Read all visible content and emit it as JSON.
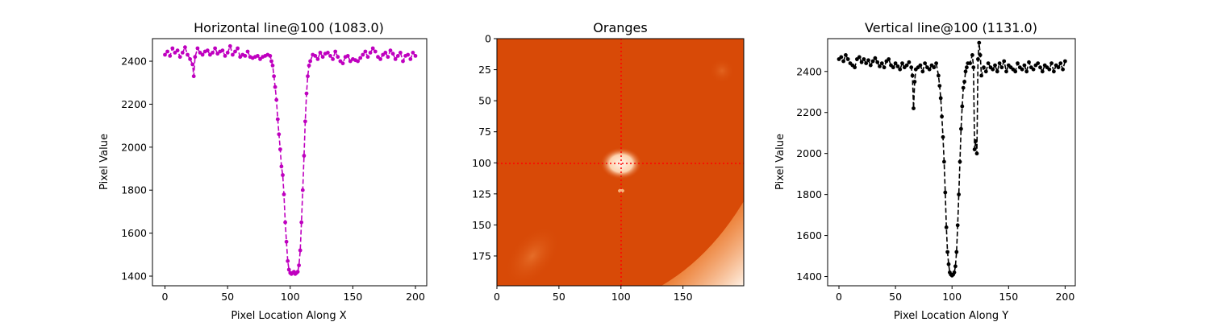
{
  "chart_data": [
    {
      "type": "line",
      "title": "Horizontal line@100 (1083.0)",
      "xlabel": "Pixel Location Along X",
      "ylabel": "Pixel Value",
      "xlim": [
        -10,
        209
      ],
      "ylim": [
        1355,
        2505
      ],
      "xticks": [
        0,
        50,
        100,
        150,
        200
      ],
      "yticks": [
        1400,
        1600,
        1800,
        2000,
        2200,
        2400
      ],
      "line_color": "#bf00bf",
      "line_style": "dashed",
      "marker": "dot",
      "grid": false,
      "series": [
        {
          "x": [
            0,
            2,
            4,
            6,
            8,
            10,
            12,
            14,
            16,
            18,
            20,
            22,
            23,
            24,
            26,
            28,
            30,
            32,
            34,
            36,
            38,
            40,
            42,
            44,
            46,
            48,
            50,
            52,
            54,
            56,
            58,
            60,
            62,
            64,
            66,
            68,
            70,
            72,
            74,
            76,
            78,
            80,
            82,
            84,
            85,
            86,
            87,
            88,
            89,
            90,
            91,
            92,
            93,
            94,
            95,
            96,
            97,
            98,
            99,
            100,
            101,
            102,
            103,
            104,
            105,
            106,
            107,
            108,
            109,
            110,
            111,
            112,
            113,
            114,
            115,
            116,
            118,
            120,
            122,
            124,
            126,
            128,
            130,
            132,
            134,
            136,
            138,
            140,
            142,
            144,
            146,
            148,
            150,
            152,
            154,
            156,
            158,
            160,
            162,
            164,
            166,
            168,
            170,
            172,
            174,
            176,
            178,
            180,
            182,
            184,
            186,
            188,
            190,
            192,
            194,
            196,
            198,
            200
          ],
          "y": [
            2430,
            2445,
            2425,
            2460,
            2440,
            2450,
            2420,
            2440,
            2465,
            2430,
            2410,
            2385,
            2330,
            2420,
            2460,
            2440,
            2430,
            2445,
            2450,
            2430,
            2440,
            2460,
            2435,
            2445,
            2450,
            2425,
            2440,
            2470,
            2430,
            2445,
            2460,
            2420,
            2430,
            2425,
            2445,
            2420,
            2415,
            2420,
            2425,
            2410,
            2420,
            2425,
            2430,
            2425,
            2400,
            2380,
            2330,
            2280,
            2220,
            2130,
            2060,
            1990,
            1910,
            1870,
            1780,
            1650,
            1560,
            1470,
            1430,
            1415,
            1410,
            1415,
            1420,
            1410,
            1415,
            1420,
            1450,
            1520,
            1650,
            1800,
            1960,
            2120,
            2250,
            2330,
            2380,
            2400,
            2430,
            2425,
            2410,
            2440,
            2420,
            2435,
            2440,
            2425,
            2410,
            2445,
            2420,
            2400,
            2390,
            2420,
            2425,
            2400,
            2410,
            2405,
            2400,
            2415,
            2430,
            2445,
            2420,
            2440,
            2460,
            2445,
            2420,
            2410,
            2430,
            2440,
            2420,
            2450,
            2435,
            2410,
            2425,
            2440,
            2400,
            2425,
            2430,
            2410,
            2440,
            2425
          ]
        }
      ]
    },
    {
      "type": "heatmap",
      "title": "Oranges",
      "colormap": "Oranges",
      "xlim": [
        0,
        199
      ],
      "ylim": [
        199,
        0
      ],
      "xticks": [
        0,
        50,
        100,
        150
      ],
      "yticks": [
        0,
        25,
        50,
        75,
        100,
        125,
        150,
        175
      ],
      "crosshair": {
        "x": 100,
        "y": 100,
        "color": "#ff0000",
        "style": "dotted"
      },
      "background_color": "#d84a07",
      "highlight_color": "#fff4ea"
    },
    {
      "type": "line",
      "title": "Vertical line@100 (1131.0)",
      "xlabel": "Pixel Location Along Y",
      "ylabel": "Pixel Value",
      "xlim": [
        -10,
        209
      ],
      "ylim": [
        1355,
        2560
      ],
      "xticks": [
        0,
        50,
        100,
        150,
        200
      ],
      "yticks": [
        1400,
        1600,
        1800,
        2000,
        2200,
        2400
      ],
      "line_color": "#000000",
      "line_style": "dashed",
      "marker": "dot",
      "grid": false,
      "series": [
        {
          "x": [
            0,
            2,
            4,
            6,
            8,
            10,
            12,
            14,
            16,
            18,
            20,
            22,
            24,
            26,
            28,
            30,
            32,
            34,
            36,
            38,
            40,
            42,
            44,
            46,
            48,
            50,
            52,
            54,
            56,
            58,
            60,
            62,
            64,
            65,
            66,
            67,
            68,
            70,
            72,
            74,
            76,
            78,
            80,
            82,
            84,
            86,
            88,
            89,
            90,
            91,
            92,
            93,
            94,
            95,
            96,
            97,
            98,
            99,
            100,
            101,
            102,
            103,
            104,
            105,
            106,
            107,
            108,
            109,
            110,
            111,
            112,
            113,
            114,
            116,
            118,
            119,
            120,
            121,
            122,
            123,
            124,
            125,
            126,
            128,
            130,
            132,
            134,
            136,
            138,
            140,
            142,
            144,
            146,
            148,
            150,
            152,
            154,
            156,
            158,
            160,
            162,
            164,
            166,
            168,
            170,
            172,
            174,
            176,
            178,
            180,
            182,
            184,
            186,
            188,
            190,
            192,
            194,
            196,
            198,
            200
          ],
          "y": [
            2460,
            2470,
            2450,
            2480,
            2460,
            2440,
            2430,
            2420,
            2460,
            2470,
            2445,
            2460,
            2440,
            2455,
            2430,
            2450,
            2465,
            2445,
            2425,
            2440,
            2420,
            2450,
            2460,
            2430,
            2420,
            2440,
            2425,
            2410,
            2440,
            2420,
            2430,
            2445,
            2420,
            2380,
            2220,
            2350,
            2410,
            2420,
            2430,
            2400,
            2440,
            2420,
            2410,
            2430,
            2420,
            2440,
            2380,
            2330,
            2270,
            2180,
            2080,
            1960,
            1810,
            1640,
            1520,
            1460,
            1420,
            1410,
            1405,
            1410,
            1420,
            1450,
            1520,
            1650,
            1800,
            1960,
            2120,
            2230,
            2320,
            2350,
            2400,
            2420,
            2440,
            2440,
            2480,
            2420,
            2020,
            2060,
            2000,
            2460,
            2540,
            2480,
            2380,
            2420,
            2400,
            2440,
            2420,
            2410,
            2430,
            2400,
            2440,
            2420,
            2450,
            2400,
            2430,
            2420,
            2410,
            2400,
            2440,
            2420,
            2410,
            2430,
            2400,
            2445,
            2420,
            2410,
            2430,
            2440,
            2420,
            2400,
            2430,
            2420,
            2410,
            2440,
            2400,
            2430,
            2420,
            2440,
            2410,
            2450
          ]
        }
      ]
    }
  ]
}
